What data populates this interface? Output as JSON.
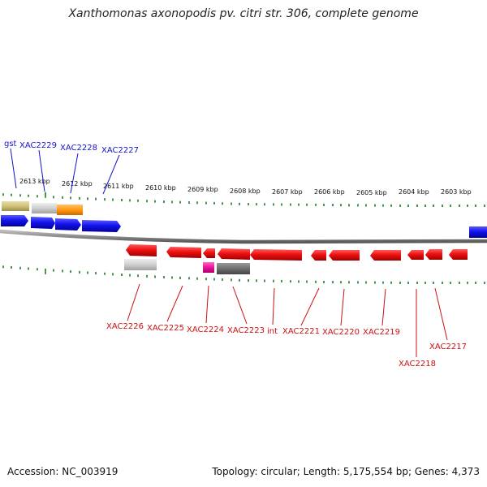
{
  "title": "Xanthomonas axonopodis pv. citri str. 306, complete genome",
  "footer": {
    "accession": "Accession: NC_003919",
    "summary": "Topology: circular; Length: 5,175,554 bp; Genes: 4,373"
  },
  "colors": {
    "forward_gene": "#1212e6",
    "reverse_gene": "#e60d0d",
    "forward_label": "#1414cc",
    "reverse_label": "#cc1111",
    "tick": "#1c7a1c",
    "backbone": "#8a8a8a"
  },
  "scale": {
    "unit": "kbp",
    "labels": [
      "2613 kbp",
      "2612 kbp",
      "2611 kbp",
      "2610 kbp",
      "2609 kbp",
      "2608 kbp",
      "2607 kbp",
      "2606 kbp",
      "2605 kbp",
      "2604 kbp",
      "2603 kbp"
    ]
  },
  "forward_labels": [
    {
      "text": "gst"
    },
    {
      "text": "XAC2229"
    },
    {
      "text": "XAC2228"
    },
    {
      "text": "XAC2227"
    }
  ],
  "reverse_labels": [
    {
      "text": "XAC2226"
    },
    {
      "text": "XAC2225"
    },
    {
      "text": "XAC2224"
    },
    {
      "text": "XAC2223"
    },
    {
      "text": "int"
    },
    {
      "text": "XAC2221"
    },
    {
      "text": "XAC2220"
    },
    {
      "text": "XAC2219"
    },
    {
      "text": "XAC2218"
    },
    {
      "text": "XAC2217"
    }
  ]
}
